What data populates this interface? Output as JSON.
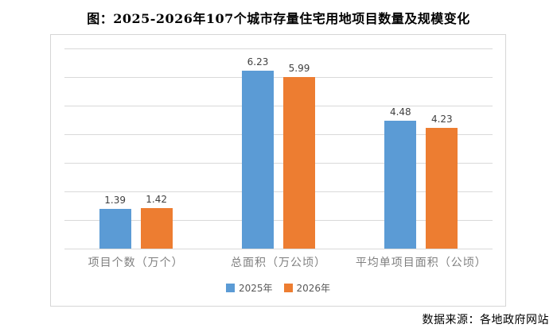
{
  "title": "图：2025-2026年107个城市存量住宅用地项目数量及规模变化",
  "source": "数据来源：各地政府网站",
  "colors": {
    "series_2025": "#5b9bd5",
    "series_2026": "#ed7d31",
    "gridline": "#d9d9d9",
    "frame_border": "#d6d6d6",
    "category_label": "#7f7f7f",
    "data_label": "#404040",
    "legend_label": "#595959",
    "title_text": "#000000"
  },
  "chart_data": {
    "type": "bar",
    "title": "图：2025-2026年107个城市存量住宅用地项目数量及规模变化",
    "categories": [
      "项目个数（万个）",
      "总面积（万公顷）",
      "平均单项目面积（公顷）"
    ],
    "series": [
      {
        "name": "2025年",
        "color": "#5b9bd5",
        "values": [
          1.39,
          6.23,
          4.48
        ]
      },
      {
        "name": "2026年",
        "color": "#ed7d31",
        "values": [
          1.42,
          5.99,
          4.23
        ]
      }
    ],
    "xlabel": "",
    "ylabel": "",
    "ylim": [
      0,
      7
    ],
    "gridline_step": 1,
    "grid": true,
    "legend_position": "bottom",
    "data_labels": true,
    "data_label_decimals": 2
  }
}
